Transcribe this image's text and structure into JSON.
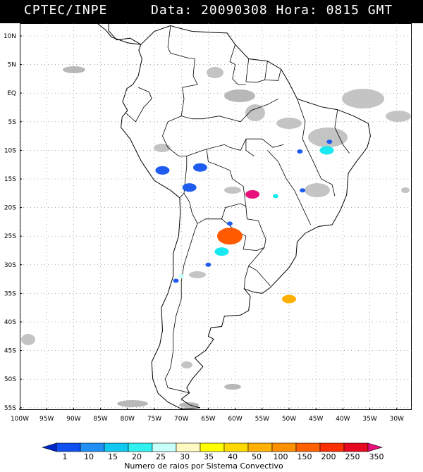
{
  "header": {
    "agency": "CPTEC/INPE",
    "datetime": "Data: 20090308 Hora: 0815 GMT"
  },
  "map": {
    "region": "South America",
    "lat_labels": [
      "10N",
      "5N",
      "EQ",
      "5S",
      "10S",
      "15S",
      "20S",
      "25S",
      "30S",
      "35S",
      "40S",
      "45S",
      "50S",
      "55S"
    ],
    "lon_labels": [
      "100W",
      "95W",
      "90W",
      "85W",
      "80W",
      "75W",
      "70W",
      "65W",
      "60W",
      "55W",
      "50W",
      "45W",
      "40W",
      "35W",
      "30W"
    ],
    "gridlines": "dotted",
    "cloud_color": "#b8b8b8",
    "storm_cells": [
      {
        "lon": -73.5,
        "lat": -13.5,
        "color": "#1e5cf0",
        "class": "10-15"
      },
      {
        "lon": -66.5,
        "lat": -13.0,
        "color": "#1e5cf0",
        "class": "10-15"
      },
      {
        "lon": -68.5,
        "lat": -16.5,
        "color": "#1e5cf0",
        "class": "10-15"
      },
      {
        "lon": -61.0,
        "lat": -25.0,
        "color": "#ff5a00",
        "class": "200-250"
      },
      {
        "lon": -56.8,
        "lat": -17.7,
        "color": "#e8107a",
        "class": ">350"
      },
      {
        "lon": -43.0,
        "lat": -10.0,
        "color": "#18e8f0",
        "class": "25-30"
      },
      {
        "lon": -62.5,
        "lat": -27.7,
        "color": "#18e8f0",
        "class": "25-30"
      },
      {
        "lon": -50.0,
        "lat": -36.0,
        "color": "#ffb000",
        "class": "100-150"
      }
    ]
  },
  "colorbar": {
    "labels": [
      "1",
      "10",
      "15",
      "20",
      "25",
      "30",
      "35",
      "40",
      "50",
      "100",
      "150",
      "200",
      "250",
      "350"
    ],
    "colors": [
      "#0028c8",
      "#1050f0",
      "#2090f5",
      "#10c8f0",
      "#30f0f0",
      "#c8fff8",
      "#fff8c0",
      "#ffff00",
      "#ffd800",
      "#ffb000",
      "#ff9000",
      "#ff6000",
      "#ff3000",
      "#e80820",
      "#e8107a"
    ],
    "title": "Numero de raios por Sistema Convectivo"
  }
}
